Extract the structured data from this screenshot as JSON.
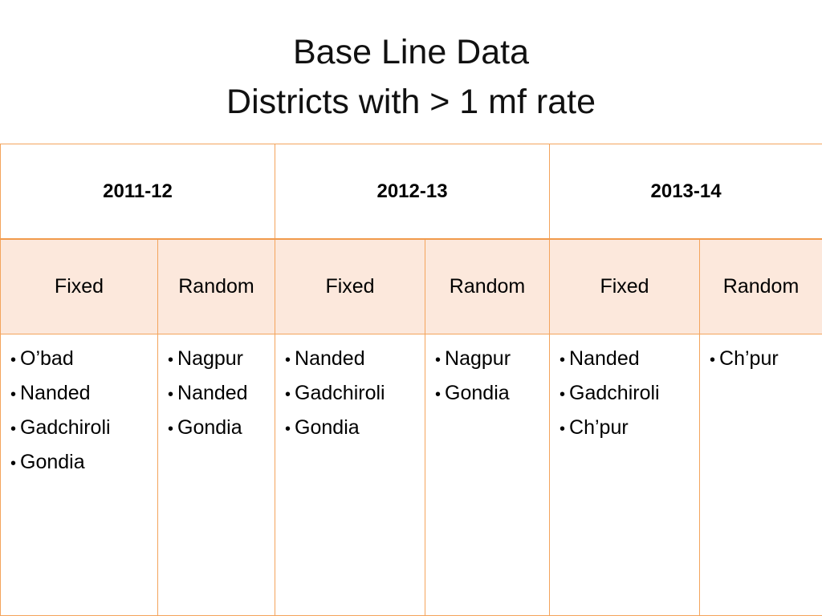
{
  "title": {
    "line1": "Base Line Data",
    "line2": "Districts with > 1 mf rate"
  },
  "table": {
    "years": [
      "2011-12",
      "2012-13",
      "2013-14"
    ],
    "types": [
      "Fixed",
      "Random",
      "Fixed",
      "Random",
      "Fixed",
      "Random"
    ],
    "lists": [
      [
        "O’bad",
        "Nanded",
        "Gadchiroli",
        "Gondia"
      ],
      [
        "Nagpur",
        "Nanded",
        "Gondia"
      ],
      [
        "Nanded",
        "Gadchiroli",
        "Gondia"
      ],
      [
        "Nagpur",
        "Gondia"
      ],
      [
        "Nanded",
        "Gadchiroli",
        "Ch’pur"
      ],
      [
        "Ch’pur"
      ]
    ]
  }
}
